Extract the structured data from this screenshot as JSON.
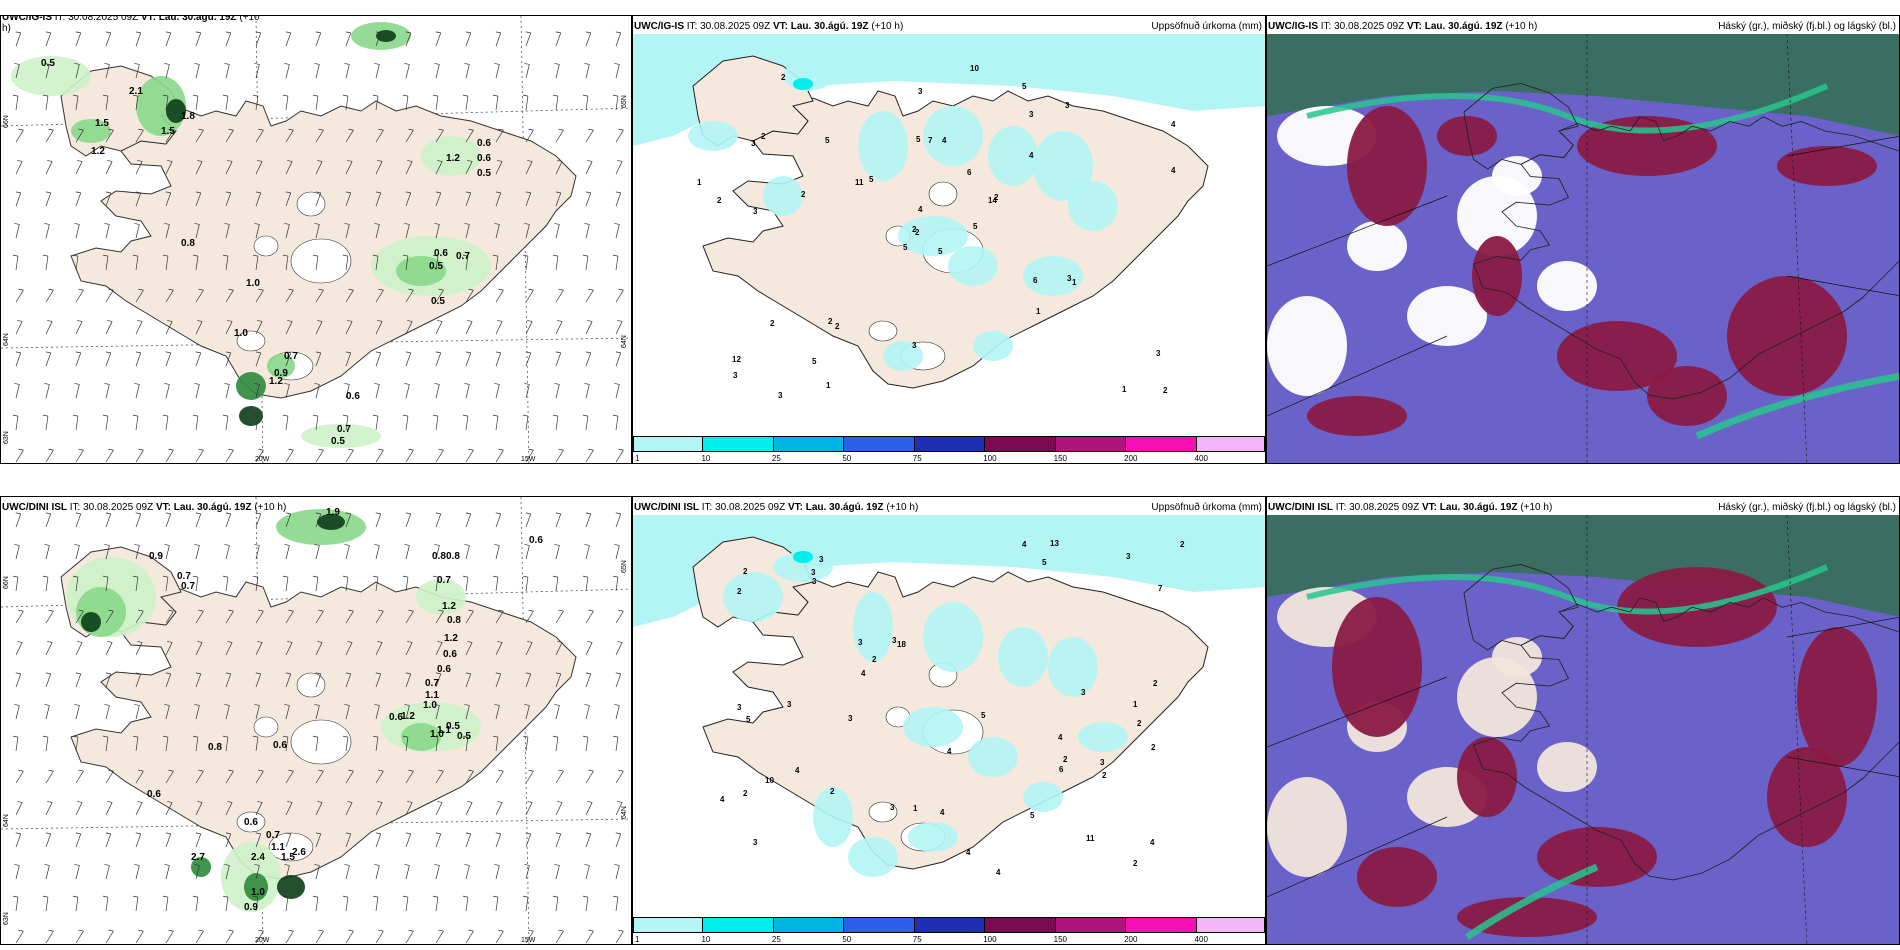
{
  "colors": {
    "land": "#f5e9dd",
    "precip_light": "#b3f5f5",
    "wind_green_1": "#cdf2c8",
    "wind_green_2": "#88d88a",
    "wind_green_3": "#2e8a3c",
    "wind_green_4": "#0c3d18",
    "cloud_high": "#3a6e62",
    "cloud_mid": "#6a62c8",
    "cloud_low": "#8a1a44",
    "cloud_jet": "#27c78e"
  },
  "top": {
    "wind": {
      "title_bold_1": "UWC/IG-IS",
      "title_it": " IT: 30.08.2025 09Z ",
      "title_bold_2": "VT: Lau. 30.ágú. 19Z",
      "title_tail": " (+10",
      "title_tail2": "h)",
      "labels": [
        "0.5",
        "0.6",
        "0.6",
        "0.5",
        "1.2",
        "0.8",
        "0.6",
        "0.5",
        "0.7",
        "1.0",
        "0.5",
        "1.0",
        "0.7",
        "0.9",
        "1.2",
        "0.6",
        "0.7",
        "0.5",
        "1.5",
        "1.2",
        "2.1",
        "1.8",
        "1.5"
      ],
      "axis": {
        "lat_66": "66N",
        "lat_64": "64N",
        "lat_63": "63N",
        "lon_20": "20W",
        "lon_15": "15W",
        "right_65": "65N",
        "right_64": "64N"
      }
    },
    "precip": {
      "title_bold_1": "UWC/IG-IS",
      "title_it": " IT: 30.08.2025 09Z ",
      "title_bold_2": "VT: Lau. 30.ágú. 19Z",
      "title_tail": " (+10 h)",
      "right": "Uppsöfnuð úrkoma (mm)",
      "labels": [
        "5",
        "3",
        "2",
        "12",
        "14",
        "2",
        "5",
        "4",
        "3",
        "5",
        "2",
        "2",
        "3",
        "4",
        "5",
        "4",
        "3",
        "5",
        "6",
        "2",
        "5",
        "3",
        "5",
        "7",
        "2",
        "1",
        "2",
        "3",
        "2",
        "6",
        "4",
        "2",
        "3",
        "4",
        "5",
        "3",
        "2",
        "1",
        "3",
        "3",
        "10",
        "11",
        "2",
        "1",
        "1",
        "1"
      ]
    },
    "cloud": {
      "title_bold_1": "UWC/IG-IS",
      "title_it": " IT: 30.08.2025 09Z ",
      "title_bold_2": "VT: Lau. 30.ágú. 19Z",
      "title_tail": " (+10 h)",
      "right": "Háský (gr.), miðský (fj.bl.) og lágský (bl.)"
    }
  },
  "bottom": {
    "wind": {
      "title_bold_1": "UWC/DINI ISL",
      "title_it": " IT: 30.08.2025 09Z ",
      "title_bold_2": "VT: Lau. 30.ágú. 19Z",
      "title_tail": " (+10 h)",
      "labels": [
        "1.9",
        "0.6",
        "0.8",
        "0.8",
        "0.9",
        "0.7",
        "0.7",
        "0.7",
        "1.2",
        "0.8",
        "1.2",
        "0.6",
        "0.6",
        "0.7",
        "1.1",
        "1.0",
        "1.2",
        "0.6",
        "0.5",
        "1.1",
        "1.0",
        "0.5",
        "0.8",
        "0.6",
        "0.6",
        "0.6",
        "0.7",
        "1.1",
        "2.6",
        "2.4",
        "1.5",
        "1.0",
        "0.9",
        "2.7"
      ],
      "axis": {
        "lat_66": "66N",
        "lat_64": "64N",
        "lat_63": "63N",
        "lon_20": "20W",
        "lon_15": "15W",
        "right_65": "65N",
        "right_64": "64N"
      }
    },
    "precip": {
      "title_bold_1": "UWC/DINI ISL",
      "title_it": " IT: 30.08.2025 09Z ",
      "title_bold_2": "VT: Lau. 30.ágú. 19Z",
      "title_tail": " (+10 h)",
      "right": "Uppsöfnuð úrkoma (mm)",
      "labels": [
        "4",
        "2",
        "3",
        "3",
        "18",
        "11",
        "2",
        "5",
        "3",
        "4",
        "2",
        "3",
        "2",
        "4",
        "3",
        "2",
        "4",
        "5",
        "3",
        "4",
        "2",
        "3",
        "4",
        "2",
        "4",
        "3",
        "2",
        "5",
        "3",
        "3",
        "4",
        "5",
        "2",
        "3",
        "1",
        "2",
        "6",
        "3",
        "4",
        "10",
        "7",
        "13",
        "2",
        "1",
        "3",
        "2",
        "4"
      ]
    },
    "cloud": {
      "title_bold_1": "UWC/DINI ISL",
      "title_it": " IT: 30.08.2025 09Z ",
      "title_bold_2": "VT: Lau. 30.ágú. 19Z",
      "title_tail": " (+10 h)",
      "right": "Háský (gr.), miðský (fj.bl.) og lágský (bl.)"
    }
  },
  "colorbar": {
    "ticks": [
      "1",
      "10",
      "25",
      "50",
      "75",
      "100",
      "150",
      "200",
      "400"
    ],
    "colors": [
      "#b3f5f5",
      "#00eeee",
      "#00b4e6",
      "#2b60e6",
      "#1f2fb4",
      "#7a0a52",
      "#b0147c",
      "#f50fb4",
      "#f5b4f5"
    ]
  }
}
